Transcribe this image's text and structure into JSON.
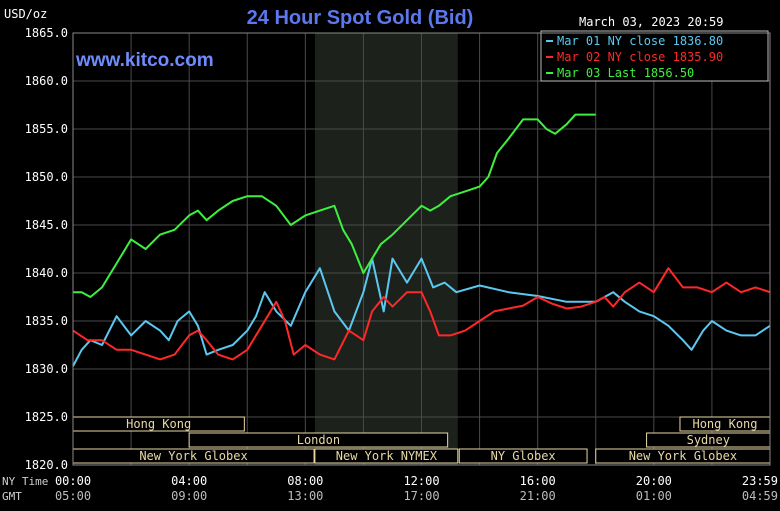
{
  "header": {
    "unit": "USD/oz",
    "title": "24 Hour Spot Gold (Bid)",
    "datetime": "March 03, 2023 20:59",
    "watermark": "www.kitco.com"
  },
  "chart_data": {
    "type": "line",
    "title": "24 Hour Spot Gold (Bid)",
    "ylabel": "USD/oz",
    "ylim": [
      1820,
      1865
    ],
    "y_ticks": [
      "1865.0",
      "1860.0",
      "1855.0",
      "1850.0",
      "1845.0",
      "1840.0",
      "1835.0",
      "1830.0",
      "1825.0",
      "1820.0"
    ],
    "xlim": [
      0,
      24
    ],
    "x_ticks_ny": [
      "00:00",
      "04:00",
      "08:00",
      "12:00",
      "16:00",
      "20:00",
      "23:59"
    ],
    "x_ticks_gmt": [
      "05:00",
      "09:00",
      "13:00",
      "17:00",
      "21:00",
      "01:00",
      "04:59"
    ],
    "x_tick_hours": [
      0,
      4,
      8,
      12,
      16,
      20,
      23.983
    ],
    "row_labels": [
      "NY Time",
      "GMT"
    ],
    "grid": true,
    "shaded_session_hours": [
      8.33,
      13.25
    ],
    "legend_position": "top-right",
    "legend": [
      {
        "text": "Mar 01 NY close 1836.80",
        "color": "#5bc8f0"
      },
      {
        "text": "Mar 02 NY close 1835.90",
        "color": "#ff2828"
      },
      {
        "text": "Mar 03 Last 1856.50",
        "color": "#3ef03e"
      }
    ],
    "series": [
      {
        "color": "#5bc8f0",
        "x": [
          0,
          0.3,
          0.6,
          1.0,
          1.5,
          2.0,
          2.5,
          3.0,
          3.3,
          3.6,
          4.0,
          4.3,
          4.6,
          5.0,
          5.5,
          6.0,
          6.3,
          6.6,
          7.0,
          7.5,
          8.0,
          8.5,
          9.0,
          9.5,
          10.0,
          10.3,
          10.7,
          11.0,
          11.5,
          12.0,
          12.4,
          12.8,
          13.2,
          14.0,
          15.0,
          16.0,
          17.0,
          17.5,
          18.0,
          18.3,
          18.6,
          19.0,
          19.5,
          20.0,
          20.5,
          21.0,
          21.3,
          21.7,
          22.0,
          22.5,
          23.0,
          23.5,
          24.0
        ],
        "y": [
          1830.3,
          1832,
          1833,
          1832.5,
          1835.5,
          1833.5,
          1835,
          1834,
          1833,
          1835,
          1836,
          1834.5,
          1831.5,
          1832,
          1832.5,
          1834,
          1835.5,
          1838,
          1836,
          1834.5,
          1838,
          1840.5,
          1836,
          1834,
          1838,
          1841.5,
          1836,
          1841.5,
          1839,
          1841.5,
          1838.5,
          1839,
          1838,
          1838.7,
          1838,
          1837.6,
          1837,
          1837,
          1837,
          1837.5,
          1838,
          1837,
          1836,
          1835.5,
          1834.5,
          1833,
          1832,
          1834,
          1835,
          1834,
          1833.5,
          1833.5,
          1834.5
        ]
      },
      {
        "color": "#ff2828",
        "x": [
          0,
          0.5,
          1.0,
          1.5,
          2.0,
          2.5,
          3.0,
          3.5,
          4.0,
          4.3,
          4.6,
          5.0,
          5.5,
          6.0,
          6.5,
          7.0,
          7.3,
          7.6,
          8.0,
          8.5,
          9.0,
          9.5,
          10.0,
          10.3,
          10.7,
          11.0,
          11.5,
          12.0,
          12.3,
          12.6,
          13.0,
          13.5,
          14.0,
          14.5,
          15.0,
          15.5,
          16.0,
          16.5,
          17.0,
          17.5,
          18.0,
          18.3,
          18.6,
          19.0,
          19.5,
          20.0,
          20.5,
          21.0,
          21.5,
          22.0,
          22.5,
          23.0,
          23.5,
          24.0
        ],
        "y": [
          1834,
          1833,
          1833,
          1832,
          1832,
          1831.5,
          1831,
          1831.5,
          1833.5,
          1834,
          1833,
          1831.5,
          1831,
          1832,
          1834.5,
          1837,
          1835,
          1831.5,
          1832.5,
          1831.5,
          1831,
          1834,
          1833,
          1836,
          1837.5,
          1836.5,
          1838,
          1838,
          1836,
          1833.5,
          1833.5,
          1834,
          1835,
          1836,
          1836.3,
          1836.6,
          1837.5,
          1836.8,
          1836.3,
          1836.5,
          1837,
          1837.5,
          1836.5,
          1838,
          1839,
          1838,
          1840.5,
          1838.5,
          1838.5,
          1838,
          1839,
          1838,
          1838.5,
          1838
        ]
      },
      {
        "color": "#3ef03e",
        "x": [
          0,
          0.3,
          0.6,
          1.0,
          1.5,
          2.0,
          2.5,
          3.0,
          3.5,
          4.0,
          4.3,
          4.6,
          5.0,
          5.5,
          6.0,
          6.5,
          7.0,
          7.5,
          8.0,
          8.5,
          9.0,
          9.3,
          9.6,
          10.0,
          10.3,
          10.6,
          11.0,
          11.5,
          12.0,
          12.3,
          12.6,
          13.0,
          13.5,
          14.0,
          14.3,
          14.6,
          15.0,
          15.5,
          16.0,
          16.3,
          16.6,
          17.0,
          17.3,
          17.6,
          18.0
        ],
        "y": [
          1838,
          1838,
          1837.5,
          1838.5,
          1841,
          1843.5,
          1842.5,
          1844,
          1844.5,
          1846,
          1846.5,
          1845.5,
          1846.5,
          1847.5,
          1848,
          1848,
          1847,
          1845,
          1846,
          1846.5,
          1847,
          1844.5,
          1843,
          1840,
          1841.5,
          1843,
          1844,
          1845.5,
          1847,
          1846.5,
          1847,
          1848,
          1848.5,
          1849,
          1850,
          1852.5,
          1854,
          1856,
          1856,
          1855,
          1854.5,
          1855.5,
          1856.5,
          1856.5,
          1856.5
        ]
      }
    ],
    "sessions": [
      {
        "label": "Hong Kong",
        "start": 0,
        "end": 5.9,
        "row": 0
      },
      {
        "label": "Hong Kong",
        "start": 20.9,
        "end": 24,
        "row": 0
      },
      {
        "label": "London",
        "start": 4.0,
        "end": 12.9,
        "row": 1
      },
      {
        "label": "Sydney",
        "start": 19.75,
        "end": 24,
        "row": 1
      },
      {
        "label": "New York Globex",
        "start": 0,
        "end": 8.3,
        "row": 2
      },
      {
        "label": "New York NYMEX",
        "start": 8.33,
        "end": 13.25,
        "row": 2
      },
      {
        "label": "NY Globex",
        "start": 13.3,
        "end": 17.7,
        "row": 2
      },
      {
        "label": "New York Globex",
        "start": 18.0,
        "end": 24,
        "row": 2
      }
    ]
  }
}
